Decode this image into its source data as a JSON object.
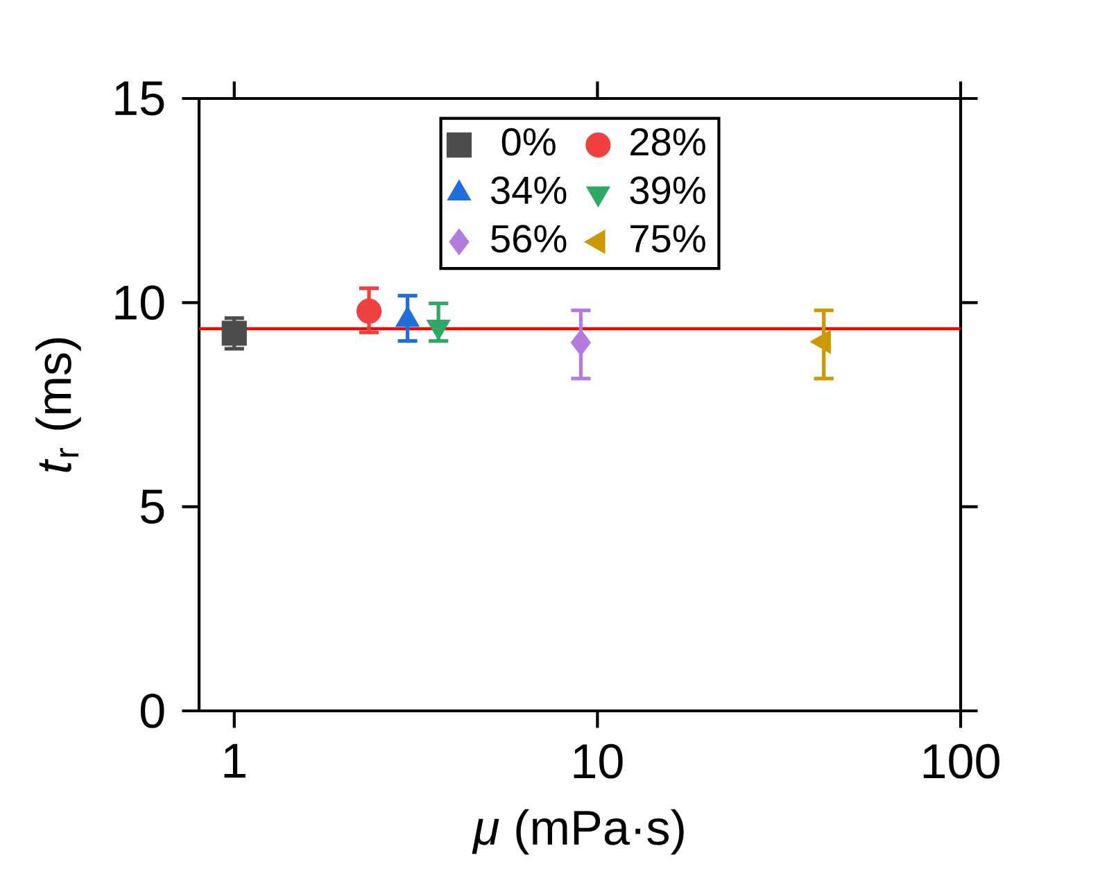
{
  "chart_data": {
    "type": "scatter",
    "xlabel": "*μ* (mPa·s)",
    "ylabel": "*t*$_{r}$ (ms)",
    "log": "x",
    "xlim": [
      0.8,
      100
    ],
    "xticks": [
      1,
      10,
      100
    ],
    "ylim": [
      0,
      15
    ],
    "yticks": [
      0,
      5,
      10,
      15
    ],
    "grid": false,
    "legend": "top",
    "ref_lines": [
      {
        "axis": "y",
        "value": 9.36,
        "color": "#ff0000"
      }
    ],
    "series": [
      {
        "name": "0%",
        "color": "#4d4d4d",
        "marker": "square",
        "x": [
          1
        ],
        "values": [
          9.25
        ],
        "errors": [
          [
            8.87,
            9.62
          ]
        ]
      },
      {
        "name": "28%",
        "color": "#f04040",
        "marker": "circle",
        "x": [
          2.35
        ],
        "values": [
          9.79
        ],
        "errors": [
          [
            9.27,
            10.35
          ]
        ]
      },
      {
        "name": "34%",
        "color": "#1f6fdb",
        "marker": "triangle",
        "x": [
          3.0
        ],
        "values": [
          9.58
        ],
        "errors": [
          [
            9.06,
            10.17
          ]
        ]
      },
      {
        "name": "39%",
        "color": "#2eaa66",
        "marker": "triangle-down",
        "x": [
          3.65
        ],
        "values": [
          9.41
        ],
        "errors": [
          [
            9.06,
            9.98
          ]
        ]
      },
      {
        "name": "56%",
        "color": "#b27be0",
        "marker": "diamond",
        "x": [
          9.0
        ],
        "values": [
          9.02
        ],
        "errors": [
          [
            8.14,
            9.81
          ]
        ]
      },
      {
        "name": "75%",
        "color": "#cc9900",
        "marker": "triangle-left",
        "x": [
          42
        ],
        "values": [
          9.04
        ],
        "errors": [
          [
            8.14,
            9.81
          ]
        ]
      }
    ]
  }
}
